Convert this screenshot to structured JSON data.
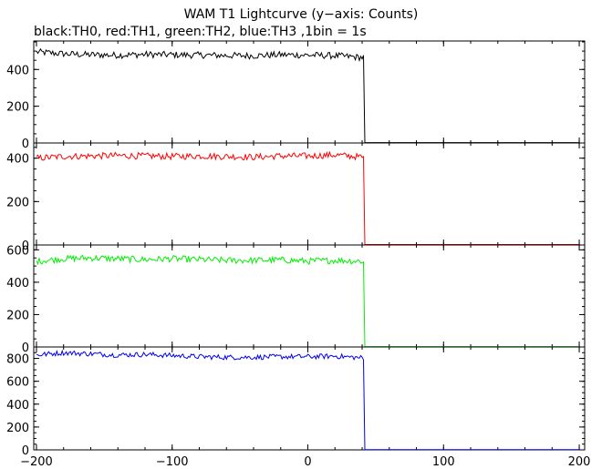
{
  "chart_data": {
    "type": "line",
    "title": "WAM T1 Lightcurve (y−axis: Counts)",
    "subtitle": "black:TH0, red:TH1, green:TH2, blue:TH3 ,1bin = 1s",
    "xlabel": "",
    "ylabel": "",
    "xlim": [
      -202,
      204
    ],
    "x_tick_values": [
      -200,
      -100,
      0,
      100,
      200
    ],
    "x_tick_labels": [
      "−200",
      "−100",
      "0",
      "100",
      "200"
    ],
    "grid": false,
    "series": [
      {
        "name": "TH0",
        "color": "#000000",
        "ylim": [
          0,
          555
        ],
        "y_tick_values": [
          0,
          200,
          400
        ],
        "y_tick_labels": [
          "0",
          "200",
          "400"
        ],
        "noise": 18,
        "x": [
          -200,
          -180,
          -160,
          -140,
          -120,
          -100,
          -80,
          -60,
          -40,
          -20,
          0,
          20,
          40,
          41,
          42,
          60,
          100,
          150,
          200
        ],
        "y": [
          495,
          485,
          480,
          478,
          482,
          480,
          478,
          476,
          475,
          480,
          478,
          475,
          465,
          465,
          2,
          2,
          2,
          2,
          2
        ]
      },
      {
        "name": "TH1",
        "color": "#ff0000",
        "ylim": [
          0,
          470
        ],
        "y_tick_values": [
          0,
          200,
          400
        ],
        "y_tick_labels": [
          "0",
          "200",
          "400"
        ],
        "noise": 15,
        "x": [
          -200,
          -180,
          -160,
          -140,
          -120,
          -100,
          -80,
          -60,
          -40,
          -20,
          0,
          20,
          40,
          41,
          42,
          60,
          100,
          150,
          200
        ],
        "y": [
          400,
          408,
          410,
          412,
          410,
          408,
          410,
          408,
          405,
          410,
          410,
          415,
          405,
          400,
          2,
          2,
          2,
          2,
          2
        ]
      },
      {
        "name": "TH2",
        "color": "#00ee00",
        "ylim": [
          0,
          630
        ],
        "y_tick_values": [
          0,
          200,
          400,
          600
        ],
        "y_tick_labels": [
          "0",
          "200",
          "400",
          "600"
        ],
        "noise": 20,
        "x": [
          -200,
          -180,
          -160,
          -140,
          -120,
          -100,
          -80,
          -60,
          -40,
          -20,
          0,
          20,
          40,
          41,
          42,
          60,
          100,
          150,
          200
        ],
        "y": [
          530,
          545,
          550,
          545,
          540,
          545,
          540,
          535,
          535,
          538,
          530,
          535,
          530,
          520,
          2,
          2,
          2,
          2,
          2
        ]
      },
      {
        "name": "TH3",
        "color": "#0000ee",
        "ylim": [
          0,
          900
        ],
        "y_tick_values": [
          0,
          200,
          400,
          600,
          800
        ],
        "y_tick_labels": [
          "0",
          "200",
          "400",
          "600",
          "800"
        ],
        "noise": 22,
        "x": [
          -200,
          -180,
          -160,
          -140,
          -120,
          -100,
          -80,
          -60,
          -40,
          -20,
          0,
          20,
          40,
          41,
          42,
          60,
          100,
          150,
          200
        ],
        "y": [
          830,
          850,
          840,
          830,
          835,
          825,
          815,
          810,
          810,
          815,
          815,
          820,
          805,
          790,
          2,
          2,
          2,
          2,
          2
        ]
      }
    ]
  }
}
